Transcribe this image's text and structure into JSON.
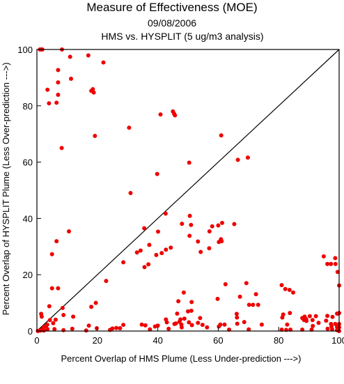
{
  "chart_data": {
    "type": "scatter",
    "title": "Measure of Effectiveness (MOE)",
    "subtitle_date": "09/08/2006",
    "subtitle_comparison": "HMS vs. HYSPLIT  (5 ug/m3 analysis)",
    "xlabel": "Percent Overlap of HMS Plume (Less Under-prediction --->)",
    "ylabel": "Percent Overlap of HYSPLIT Plume (Less Over-prediction --->)",
    "xlim": [
      0,
      100
    ],
    "ylim": [
      0,
      100
    ],
    "x_ticks": [
      "0",
      "20",
      "40",
      "60",
      "80",
      "100"
    ],
    "y_ticks": [
      "0",
      "20",
      "40",
      "60",
      "80",
      "100"
    ],
    "grid": false,
    "reference_line": "1:1 diagonal",
    "point_color": "#ee0000",
    "line_color": "#000000",
    "points": [
      [
        1,
        100
      ],
      [
        1.5,
        100
      ],
      [
        1.8,
        100
      ],
      [
        8.3,
        100
      ],
      [
        17,
        97.9
      ],
      [
        11,
        97.4
      ],
      [
        22,
        95.4
      ],
      [
        7,
        92.7
      ],
      [
        11.3,
        89.6
      ],
      [
        7,
        88.3
      ],
      [
        3.5,
        85.7
      ],
      [
        18,
        85.3
      ],
      [
        18.5,
        85.9
      ],
      [
        18.8,
        84.7
      ],
      [
        7,
        83.9
      ],
      [
        6.5,
        81.1
      ],
      [
        4,
        80.9
      ],
      [
        45,
        78
      ],
      [
        45.4,
        77.2
      ],
      [
        45.7,
        76.6
      ],
      [
        40.9,
        76.9
      ],
      [
        30.5,
        72.2
      ],
      [
        19.2,
        69.3
      ],
      [
        61,
        69.5
      ],
      [
        8.2,
        65
      ],
      [
        69.8,
        61.6
      ],
      [
        66.5,
        60.8
      ],
      [
        50.4,
        59.8
      ],
      [
        39.8,
        55.8
      ],
      [
        31,
        49
      ],
      [
        42.6,
        41.7
      ],
      [
        50.6,
        40.9
      ],
      [
        60,
        37.5
      ],
      [
        35.5,
        36.5
      ],
      [
        51,
        37.7
      ],
      [
        58,
        37.2
      ],
      [
        65.3,
        38
      ],
      [
        61.3,
        38.4
      ],
      [
        48,
        38.1
      ],
      [
        10.6,
        35.4
      ],
      [
        40.1,
        35.3
      ],
      [
        50.5,
        33.8
      ],
      [
        60.9,
        32.6
      ],
      [
        57.1,
        35.4
      ],
      [
        6.5,
        31.9
      ],
      [
        37.2,
        30.6
      ],
      [
        53.3,
        31.8
      ],
      [
        60.2,
        31.6
      ],
      [
        61.1,
        31.9
      ],
      [
        33.1,
        27.9
      ],
      [
        42.7,
        28.9
      ],
      [
        44.3,
        29.6
      ],
      [
        54.2,
        28.1
      ],
      [
        57,
        29.4
      ],
      [
        39.5,
        27
      ],
      [
        41.3,
        27.7
      ],
      [
        5,
        27.3
      ],
      [
        34.3,
        28.6
      ],
      [
        36.9,
        23.7
      ],
      [
        35.6,
        22.7
      ],
      [
        94.9,
        26.5
      ],
      [
        97.3,
        23.8
      ],
      [
        96.1,
        23.8
      ],
      [
        98.7,
        25.9
      ],
      [
        98.8,
        23.8
      ],
      [
        99.5,
        21
      ],
      [
        28.6,
        24.4
      ],
      [
        22.9,
        17.8
      ],
      [
        100,
        16.2
      ],
      [
        62.4,
        16.6
      ],
      [
        69.3,
        17
      ],
      [
        81,
        16.3
      ],
      [
        82.2,
        14.9
      ],
      [
        83.6,
        14.6
      ],
      [
        5,
        15.2
      ],
      [
        7,
        15.2
      ],
      [
        48.6,
        13.7
      ],
      [
        72.5,
        13.1
      ],
      [
        59.8,
        11.4
      ],
      [
        67.2,
        12.2
      ],
      [
        84.8,
        13.7
      ],
      [
        19.5,
        10
      ],
      [
        18,
        8.6
      ],
      [
        4.1,
        8.8
      ],
      [
        8.5,
        8.2
      ],
      [
        46.8,
        10.6
      ],
      [
        51.2,
        10.3
      ],
      [
        73.2,
        9.3
      ],
      [
        70.2,
        9.3
      ],
      [
        71.5,
        9.3
      ],
      [
        66.1,
        6.1
      ],
      [
        83.7,
        6.4
      ],
      [
        81.5,
        5.9
      ],
      [
        88.6,
        5.1
      ],
      [
        90.3,
        5.3
      ],
      [
        92.3,
        5.3
      ],
      [
        96.1,
        5.4
      ],
      [
        97.8,
        5
      ],
      [
        99.7,
        6.2
      ],
      [
        99.3,
        6.2
      ],
      [
        100,
        6.4
      ],
      [
        1.4,
        6.1
      ],
      [
        1.6,
        5.1
      ],
      [
        5.4,
        2.8
      ],
      [
        4.3,
        3.9
      ],
      [
        3.4,
        2.3
      ],
      [
        2.3,
        1.4
      ],
      [
        3,
        1.7
      ],
      [
        6.2,
        4
      ],
      [
        8.8,
        5.7
      ],
      [
        12,
        5.1
      ],
      [
        50,
        7
      ],
      [
        51.1,
        7.2
      ],
      [
        54,
        4.6
      ],
      [
        48.8,
        4.4
      ],
      [
        46.4,
        6.2
      ],
      [
        47.5,
        4.1
      ],
      [
        50.3,
        3.1
      ],
      [
        47.8,
        2.3
      ],
      [
        47.2,
        3.3
      ],
      [
        42.7,
        4.1
      ],
      [
        43,
        3.1
      ],
      [
        45.5,
        2.5
      ],
      [
        46,
        2.7
      ],
      [
        51.3,
        2.1
      ],
      [
        53.3,
        2.9
      ],
      [
        54.8,
        2.2
      ],
      [
        60.7,
        2.3
      ],
      [
        62.1,
        2.3
      ],
      [
        66.2,
        4.8
      ],
      [
        66.3,
        2.6
      ],
      [
        68.6,
        3.2
      ],
      [
        74.4,
        2.3
      ],
      [
        81.2,
        4.8
      ],
      [
        82.8,
        2.3
      ],
      [
        87.8,
        4.6
      ],
      [
        88.4,
        3.9
      ],
      [
        89.1,
        4.2
      ],
      [
        89.2,
        3.6
      ],
      [
        91.2,
        3.9
      ],
      [
        93.2,
        2.9
      ],
      [
        91.3,
        1.8
      ],
      [
        95.7,
        3.7
      ],
      [
        97.3,
        2.5
      ],
      [
        97.5,
        1.6
      ],
      [
        98.7,
        2.5
      ],
      [
        99.3,
        1.4
      ],
      [
        100,
        2.5
      ],
      [
        100,
        1.3
      ],
      [
        1.7,
        0.6
      ],
      [
        3.5,
        0.7
      ],
      [
        5.8,
        0.7
      ],
      [
        11.7,
        0.8
      ],
      [
        17.2,
        1.9
      ],
      [
        19.8,
        1
      ],
      [
        28.6,
        2.2
      ],
      [
        27.5,
        1
      ],
      [
        26.3,
        1.1
      ],
      [
        25,
        0.9
      ],
      [
        24.2,
        0.4
      ],
      [
        34.7,
        2.3
      ],
      [
        35.9,
        2
      ],
      [
        39.1,
        1.6
      ],
      [
        40,
        1.9
      ],
      [
        37.4,
        0.6
      ],
      [
        43.6,
        0.8
      ],
      [
        47.9,
        1.3
      ],
      [
        56.3,
        1.3
      ],
      [
        60.2,
        1.6
      ],
      [
        63.6,
        0.5
      ],
      [
        70.1,
        0.6
      ],
      [
        81,
        0.5
      ],
      [
        82.5,
        0.4
      ],
      [
        83.9,
        0.5
      ],
      [
        87.8,
        0.5
      ],
      [
        90.9,
        0.5
      ],
      [
        96.2,
        0.8
      ],
      [
        97.7,
        0.6
      ],
      [
        99.3,
        0.3
      ],
      [
        0.3,
        0
      ],
      [
        0.8,
        0.2
      ],
      [
        1.2,
        0.2
      ],
      [
        2.3,
        0.2
      ],
      [
        8.8,
        0.3
      ],
      [
        16.3,
        0.2
      ],
      [
        100,
        0
      ]
    ]
  }
}
